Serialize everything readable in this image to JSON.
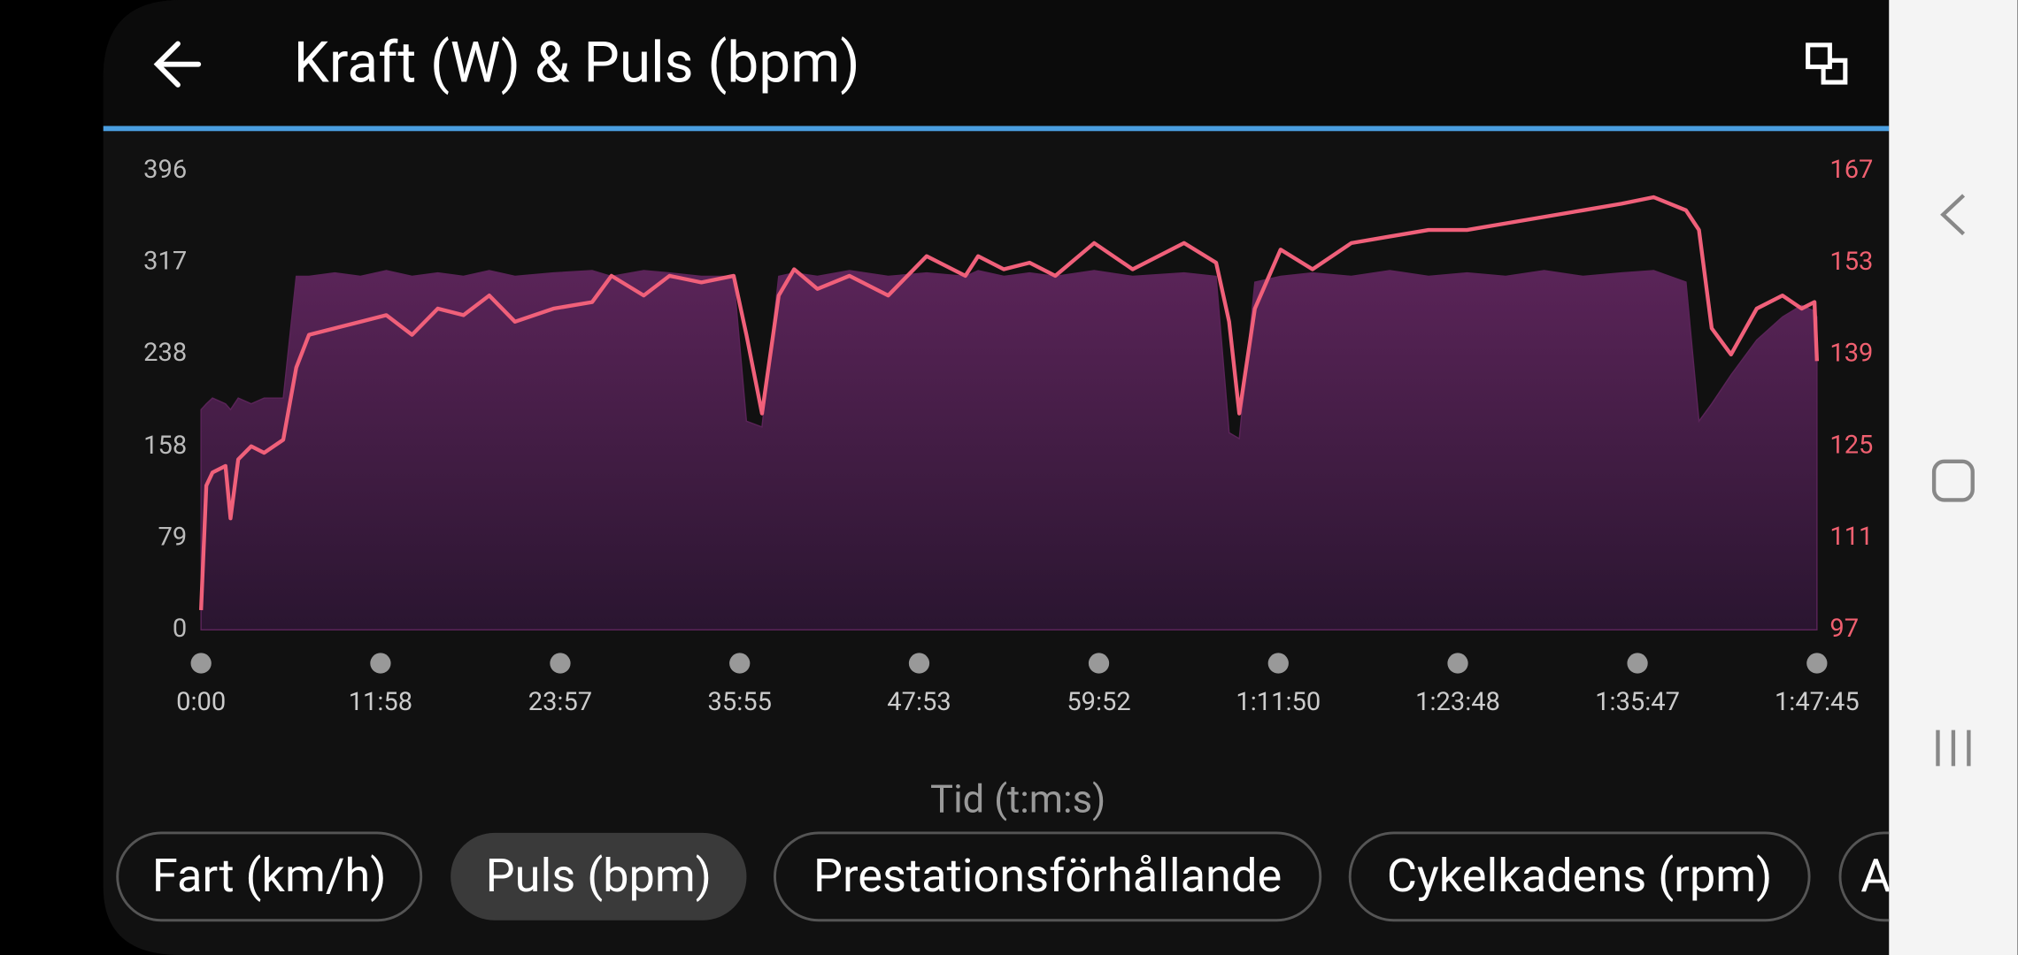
{
  "chart_data": {
    "type": "area_line",
    "title": "Kraft (W) & Puls (bpm)",
    "xlabel": "Tid (t:m:s)",
    "x": [
      0,
      21,
      46,
      98,
      118,
      149,
      201,
      252,
      329,
      381,
      432,
      535,
      638,
      741,
      844,
      947,
      1050,
      1153,
      1256,
      1410,
      1565,
      1642,
      1771,
      1874,
      2002,
      2131,
      2182,
      2244,
      2311,
      2373,
      2466,
      2594,
      2749,
      2903,
      3058,
      3109,
      3212,
      3315,
      3418,
      3573,
      3727,
      3933,
      4061,
      4113,
      4154,
      4216,
      4319,
      4447,
      4602,
      4756,
      4911,
      5065,
      5220,
      5374,
      5529,
      5683,
      5812,
      5941,
      5993,
      6044,
      6121,
      6224,
      6327,
      6404,
      6455,
      6465
    ],
    "series": [
      {
        "color": "#5a2458",
        "axis": "y",
        "values": [
          190,
          195,
          200,
          195,
          190,
          200,
          195,
          200,
          200,
          305,
          305,
          308,
          305,
          310,
          305,
          308,
          305,
          310,
          305,
          308,
          310,
          305,
          310,
          308,
          305,
          305,
          180,
          175,
          305,
          308,
          305,
          310,
          305,
          308,
          305,
          310,
          305,
          308,
          305,
          310,
          305,
          308,
          305,
          170,
          165,
          300,
          305,
          308,
          305,
          310,
          305,
          308,
          305,
          310,
          305,
          308,
          310,
          300,
          180,
          195,
          220,
          250,
          270,
          280,
          275,
          270
        ]
      },
      {
        "color": "#f0607a",
        "axis": "y2",
        "values": [
          100,
          119,
          121,
          122,
          114,
          123,
          125,
          124,
          126,
          137,
          142,
          143,
          144,
          145,
          142,
          146,
          145,
          148,
          144,
          146,
          147,
          151,
          148,
          151,
          150,
          151,
          142,
          130,
          148,
          152,
          149,
          151,
          148,
          154,
          151,
          154,
          152,
          153,
          151,
          156,
          152,
          156,
          153,
          144,
          130,
          146,
          155,
          152,
          156,
          157,
          158,
          158,
          159,
          160,
          161,
          162,
          163,
          161,
          158,
          143,
          139,
          146,
          148,
          146,
          147,
          138
        ]
      }
    ],
    "xlim": [
      0,
      6465
    ],
    "xticks": [
      {
        "value": 0,
        "label": "0:00"
      },
      {
        "value": 718,
        "label": "11:58"
      },
      {
        "value": 1437,
        "label": "23:57"
      },
      {
        "value": 2155,
        "label": "35:55"
      },
      {
        "value": 2873,
        "label": "47:53"
      },
      {
        "value": 3592,
        "label": "59:52"
      },
      {
        "value": 4310,
        "label": "1:11:50"
      },
      {
        "value": 5028,
        "label": "1:23:48"
      },
      {
        "value": 5747,
        "label": "1:35:47"
      },
      {
        "value": 6465,
        "label": "1:47:45"
      }
    ],
    "ylim": [
      0,
      396
    ],
    "yticks": [
      0,
      79,
      158,
      238,
      317,
      396
    ],
    "y2lim": [
      97,
      167
    ],
    "y2ticks": [
      97,
      111,
      125,
      139,
      153,
      167
    ]
  },
  "buttons": [
    "Fart (km/h)",
    "Puls (bpm)",
    "Prestationsförhållande",
    "Cykelkadens (rpm)",
    "A"
  ]
}
